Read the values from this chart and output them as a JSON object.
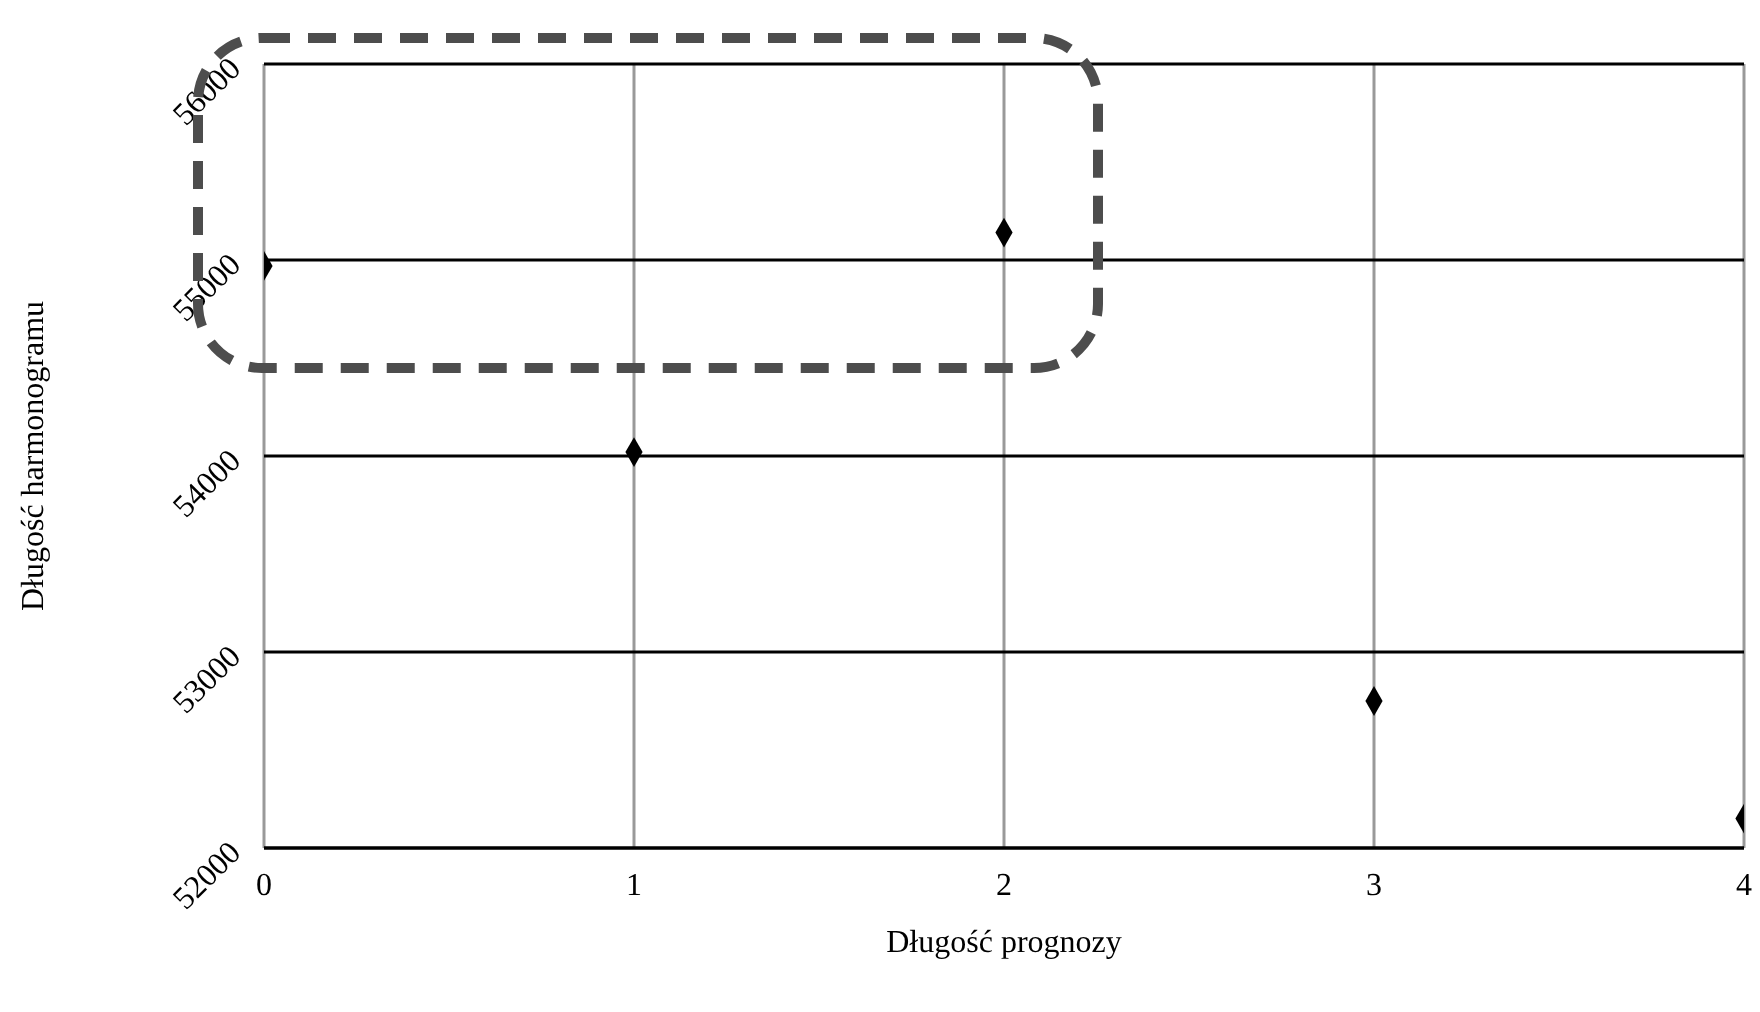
{
  "chart_data": {
    "type": "scatter",
    "xlabel": "Długość prognozy",
    "ylabel": "Długość harmonogramu",
    "x": [
      0,
      1,
      2,
      3,
      4
    ],
    "values": [
      54970,
      54020,
      55140,
      52750,
      52150
    ],
    "color": "#000000",
    "marker": "diamond",
    "xlim": [
      0,
      4
    ],
    "xticks": [
      0,
      1,
      2,
      3,
      4
    ],
    "ylim": [
      52000,
      56000
    ],
    "yticks": [
      52000,
      53000,
      54000,
      55000,
      56000
    ],
    "grid": true
  }
}
